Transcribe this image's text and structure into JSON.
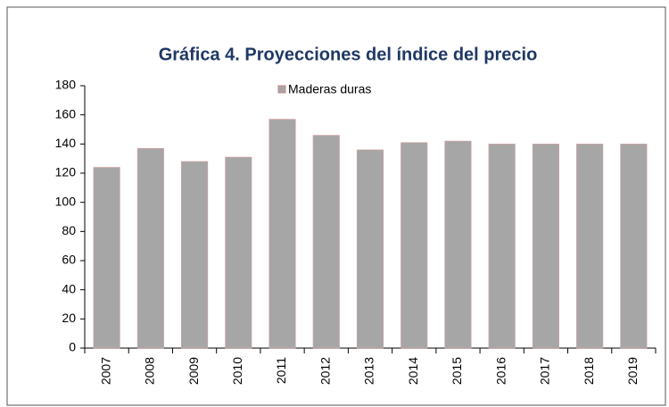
{
  "chart_data": {
    "type": "bar",
    "title": "Gráfica 4. Proyecciones del índice del precio",
    "categories": [
      "2007",
      "2008",
      "2009",
      "2010",
      "2011",
      "2012",
      "2013",
      "2014",
      "2015",
      "2016",
      "2017",
      "2018",
      "2019"
    ],
    "series": [
      {
        "name": "Maderas duras",
        "color": "#a6a6a6",
        "values": [
          124,
          137,
          128,
          131,
          157,
          146,
          136,
          141,
          142,
          140,
          140,
          140,
          140
        ]
      }
    ],
    "ylim": [
      0,
      180
    ],
    "yticks": [
      0,
      20,
      40,
      60,
      80,
      100,
      120,
      140,
      160,
      180
    ],
    "legend": "top"
  }
}
